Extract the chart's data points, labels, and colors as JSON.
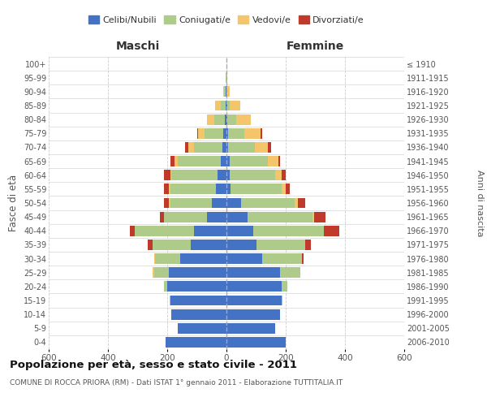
{
  "age_groups": [
    "0-4",
    "5-9",
    "10-14",
    "15-19",
    "20-24",
    "25-29",
    "30-34",
    "35-39",
    "40-44",
    "45-49",
    "50-54",
    "55-59",
    "60-64",
    "65-69",
    "70-74",
    "75-79",
    "80-84",
    "85-89",
    "90-94",
    "95-99",
    "100+"
  ],
  "birth_years": [
    "2006-2010",
    "2001-2005",
    "1996-2000",
    "1991-1995",
    "1986-1990",
    "1981-1985",
    "1976-1980",
    "1971-1975",
    "1966-1970",
    "1961-1965",
    "1956-1960",
    "1951-1955",
    "1946-1950",
    "1941-1945",
    "1936-1940",
    "1931-1935",
    "1926-1930",
    "1921-1925",
    "1916-1920",
    "1911-1915",
    "≤ 1910"
  ],
  "colors": {
    "celibi": "#4472C4",
    "coniugati": "#AECB8A",
    "vedovi": "#F5C56C",
    "divorziati": "#C0392B"
  },
  "males": {
    "celibi": [
      205,
      165,
      185,
      190,
      200,
      195,
      155,
      120,
      110,
      65,
      50,
      35,
      30,
      20,
      15,
      10,
      5,
      3,
      2,
      1,
      0
    ],
    "coniugati": [
      0,
      0,
      0,
      2,
      10,
      50,
      85,
      130,
      200,
      145,
      140,
      155,
      155,
      145,
      95,
      65,
      35,
      15,
      5,
      1,
      0
    ],
    "vedovi": [
      0,
      0,
      0,
      0,
      0,
      5,
      5,
      0,
      0,
      0,
      5,
      5,
      5,
      10,
      20,
      20,
      25,
      20,
      5,
      2,
      0
    ],
    "divorziati": [
      0,
      0,
      0,
      0,
      0,
      0,
      0,
      15,
      15,
      15,
      15,
      15,
      20,
      15,
      10,
      5,
      0,
      0,
      0,
      0,
      0
    ]
  },
  "females": {
    "celibi": [
      200,
      165,
      180,
      185,
      185,
      180,
      120,
      100,
      90,
      70,
      50,
      15,
      10,
      10,
      5,
      5,
      3,
      2,
      1,
      1,
      0
    ],
    "coniugati": [
      0,
      0,
      2,
      5,
      20,
      70,
      135,
      165,
      240,
      220,
      180,
      170,
      155,
      130,
      90,
      55,
      30,
      10,
      3,
      1,
      0
    ],
    "vedovi": [
      0,
      0,
      0,
      0,
      0,
      0,
      0,
      0,
      0,
      5,
      10,
      15,
      20,
      35,
      45,
      55,
      50,
      35,
      8,
      2,
      0
    ],
    "divorziati": [
      0,
      0,
      0,
      0,
      0,
      0,
      6,
      20,
      50,
      38,
      25,
      15,
      15,
      5,
      10,
      5,
      0,
      0,
      0,
      0,
      0
    ]
  },
  "xlim": 600,
  "title": "Popolazione per età, sesso e stato civile - 2011",
  "subtitle": "COMUNE DI ROCCA PRIORA (RM) - Dati ISTAT 1° gennaio 2011 - Elaborazione TUTTITALIA.IT",
  "ylabel_left": "Fasce di età",
  "ylabel_right": "Anni di nascita",
  "xlabel_left": "Maschi",
  "xlabel_right": "Femmine",
  "legend_labels": [
    "Celibi/Nubili",
    "Coniugati/e",
    "Vedovi/e",
    "Divorziati/e"
  ],
  "bg_color": "#ffffff",
  "bar_height": 0.75,
  "grid_color": "#cccccc"
}
